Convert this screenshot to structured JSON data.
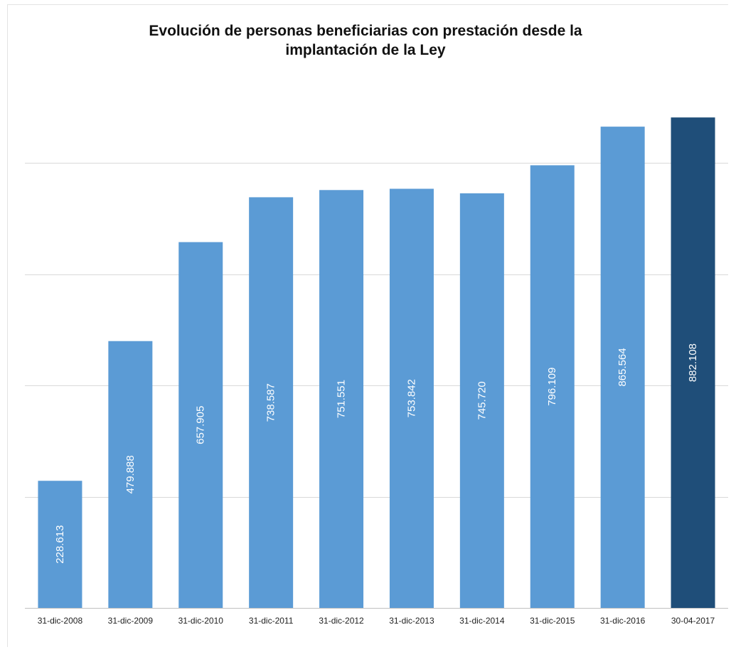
{
  "chart_data": {
    "type": "bar",
    "title_lines": [
      "Evolución de personas beneficiarias con prestación desde la",
      "implantación de la Ley"
    ],
    "categories": [
      "31-dic-2008",
      "31-dic-2009",
      "31-dic-2010",
      "31-dic-2011",
      "31-dic-2012",
      "31-dic-2013",
      "31-dic-2014",
      "31-dic-2015",
      "31-dic-2016",
      "30-04-2017"
    ],
    "values": [
      228613,
      479888,
      657905,
      738587,
      751551,
      753842,
      745720,
      796109,
      865564,
      882108
    ],
    "value_labels": [
      "228.613",
      "479.888",
      "657.905",
      "738.587",
      "751.551",
      "753.842",
      "745.720",
      "796.109",
      "865.564",
      "882.108"
    ],
    "xlabel": "",
    "ylabel": "",
    "ylim": [
      0,
      1000000
    ],
    "gridlines": [
      200000,
      400000,
      600000,
      800000
    ],
    "grid": true,
    "legend": "none",
    "colors": {
      "bar": "#5b9bd5",
      "highlight_bar": "#1f4e79",
      "highlight_index": 9,
      "grid": "#d9d9d9",
      "label": "#ffffff"
    }
  }
}
